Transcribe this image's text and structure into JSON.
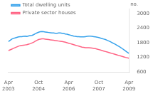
{
  "chart_data": {
    "type": "line",
    "ylabel": "no.",
    "categories": [
      "Apr\n2003",
      null,
      null,
      null,
      null,
      null,
      null,
      null,
      null,
      null,
      null,
      null,
      null,
      null,
      null,
      null,
      null,
      null,
      "Oct\n2004",
      null,
      null,
      null,
      null,
      null,
      null,
      null,
      null,
      null,
      null,
      null,
      null,
      null,
      null,
      null,
      null,
      null,
      "Apr\n2006",
      null,
      null,
      null,
      null,
      null,
      null,
      null,
      null,
      null,
      null,
      null,
      null,
      null,
      null,
      null,
      null,
      null,
      "Oct\n2007",
      null,
      null,
      null,
      null,
      null,
      null,
      null,
      null,
      null,
      null,
      null,
      null,
      null,
      null,
      null,
      null,
      null,
      "Apr\n2009"
    ],
    "series": [
      {
        "name": "Total dwelling units",
        "values": [
          1850,
          1900,
          1950,
          1980,
          2000,
          2020,
          2040,
          2050,
          2050,
          2060,
          2070,
          2060,
          2080,
          2090,
          2100,
          2130,
          2170,
          2200,
          2230,
          2250,
          2260,
          2250,
          2240,
          2230,
          2220,
          2210,
          2200,
          2200,
          2190,
          2190,
          2200,
          2200,
          2190,
          2180,
          2160,
          2150,
          2130,
          2110,
          2090,
          2070,
          2060,
          2050,
          2050,
          2040,
          2040,
          2040,
          2050,
          2060,
          2070,
          2070,
          2060,
          2050,
          2040,
          2030,
          2010,
          1990,
          1970,
          1950,
          1930,
          1900,
          1870,
          1840,
          1800,
          1770,
          1730,
          1690,
          1650,
          1610,
          1560,
          1510,
          1460,
          1410,
          1370
        ]
      },
      {
        "name": "Private sector houses",
        "values": [
          1480,
          1510,
          1540,
          1570,
          1600,
          1630,
          1660,
          1680,
          1690,
          1700,
          1710,
          1720,
          1740,
          1760,
          1790,
          1820,
          1860,
          1900,
          1930,
          1950,
          1960,
          1960,
          1950,
          1940,
          1930,
          1920,
          1910,
          1900,
          1890,
          1880,
          1870,
          1860,
          1850,
          1840,
          1820,
          1800,
          1780,
          1760,
          1740,
          1720,
          1700,
          1680,
          1660,
          1640,
          1620,
          1610,
          1600,
          1600,
          1600,
          1590,
          1580,
          1570,
          1560,
          1540,
          1520,
          1500,
          1480,
          1460,
          1440,
          1420,
          1400,
          1380,
          1360,
          1340,
          1320,
          1300,
          1280,
          1260,
          1240,
          1220,
          1200,
          1185,
          1170
        ]
      }
    ],
    "ylim": [
      600,
      3200
    ],
    "yticks": [
      600,
      1200,
      1800,
      2400,
      3000
    ],
    "grid": false,
    "legend": "upper left"
  }
}
